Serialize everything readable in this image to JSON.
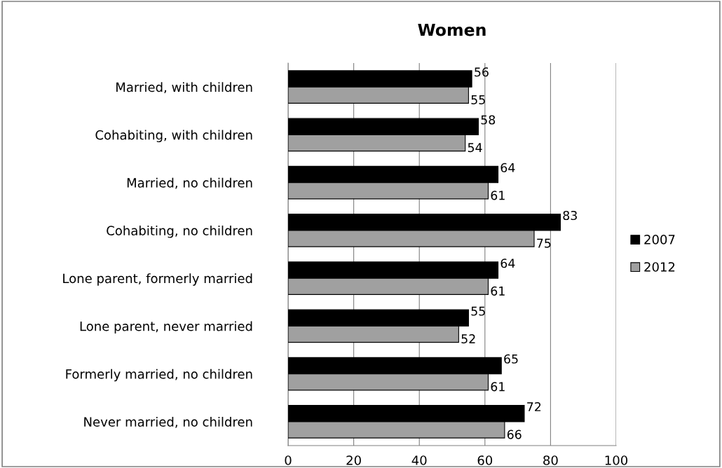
{
  "chart_data": {
    "type": "bar",
    "orientation": "horizontal",
    "title": "Women",
    "categories": [
      "Married, with children",
      "Cohabiting, with children",
      "Married, no children",
      "Cohabiting, no children",
      "Lone parent, formerly married",
      "Lone parent, never married",
      "Formerly married, no children",
      "Never married, no children"
    ],
    "series": [
      {
        "name": "2007",
        "color": "#000000",
        "values": [
          56,
          58,
          64,
          83,
          64,
          55,
          65,
          72
        ]
      },
      {
        "name": "2012",
        "color": "#a0a0a0",
        "values": [
          55,
          54,
          61,
          75,
          61,
          52,
          61,
          66
        ]
      }
    ],
    "xlim": [
      0,
      100
    ],
    "xticks": [
      0,
      20,
      40,
      60,
      80,
      100
    ],
    "grid": "x",
    "legend": "right",
    "data_labels": true
  }
}
